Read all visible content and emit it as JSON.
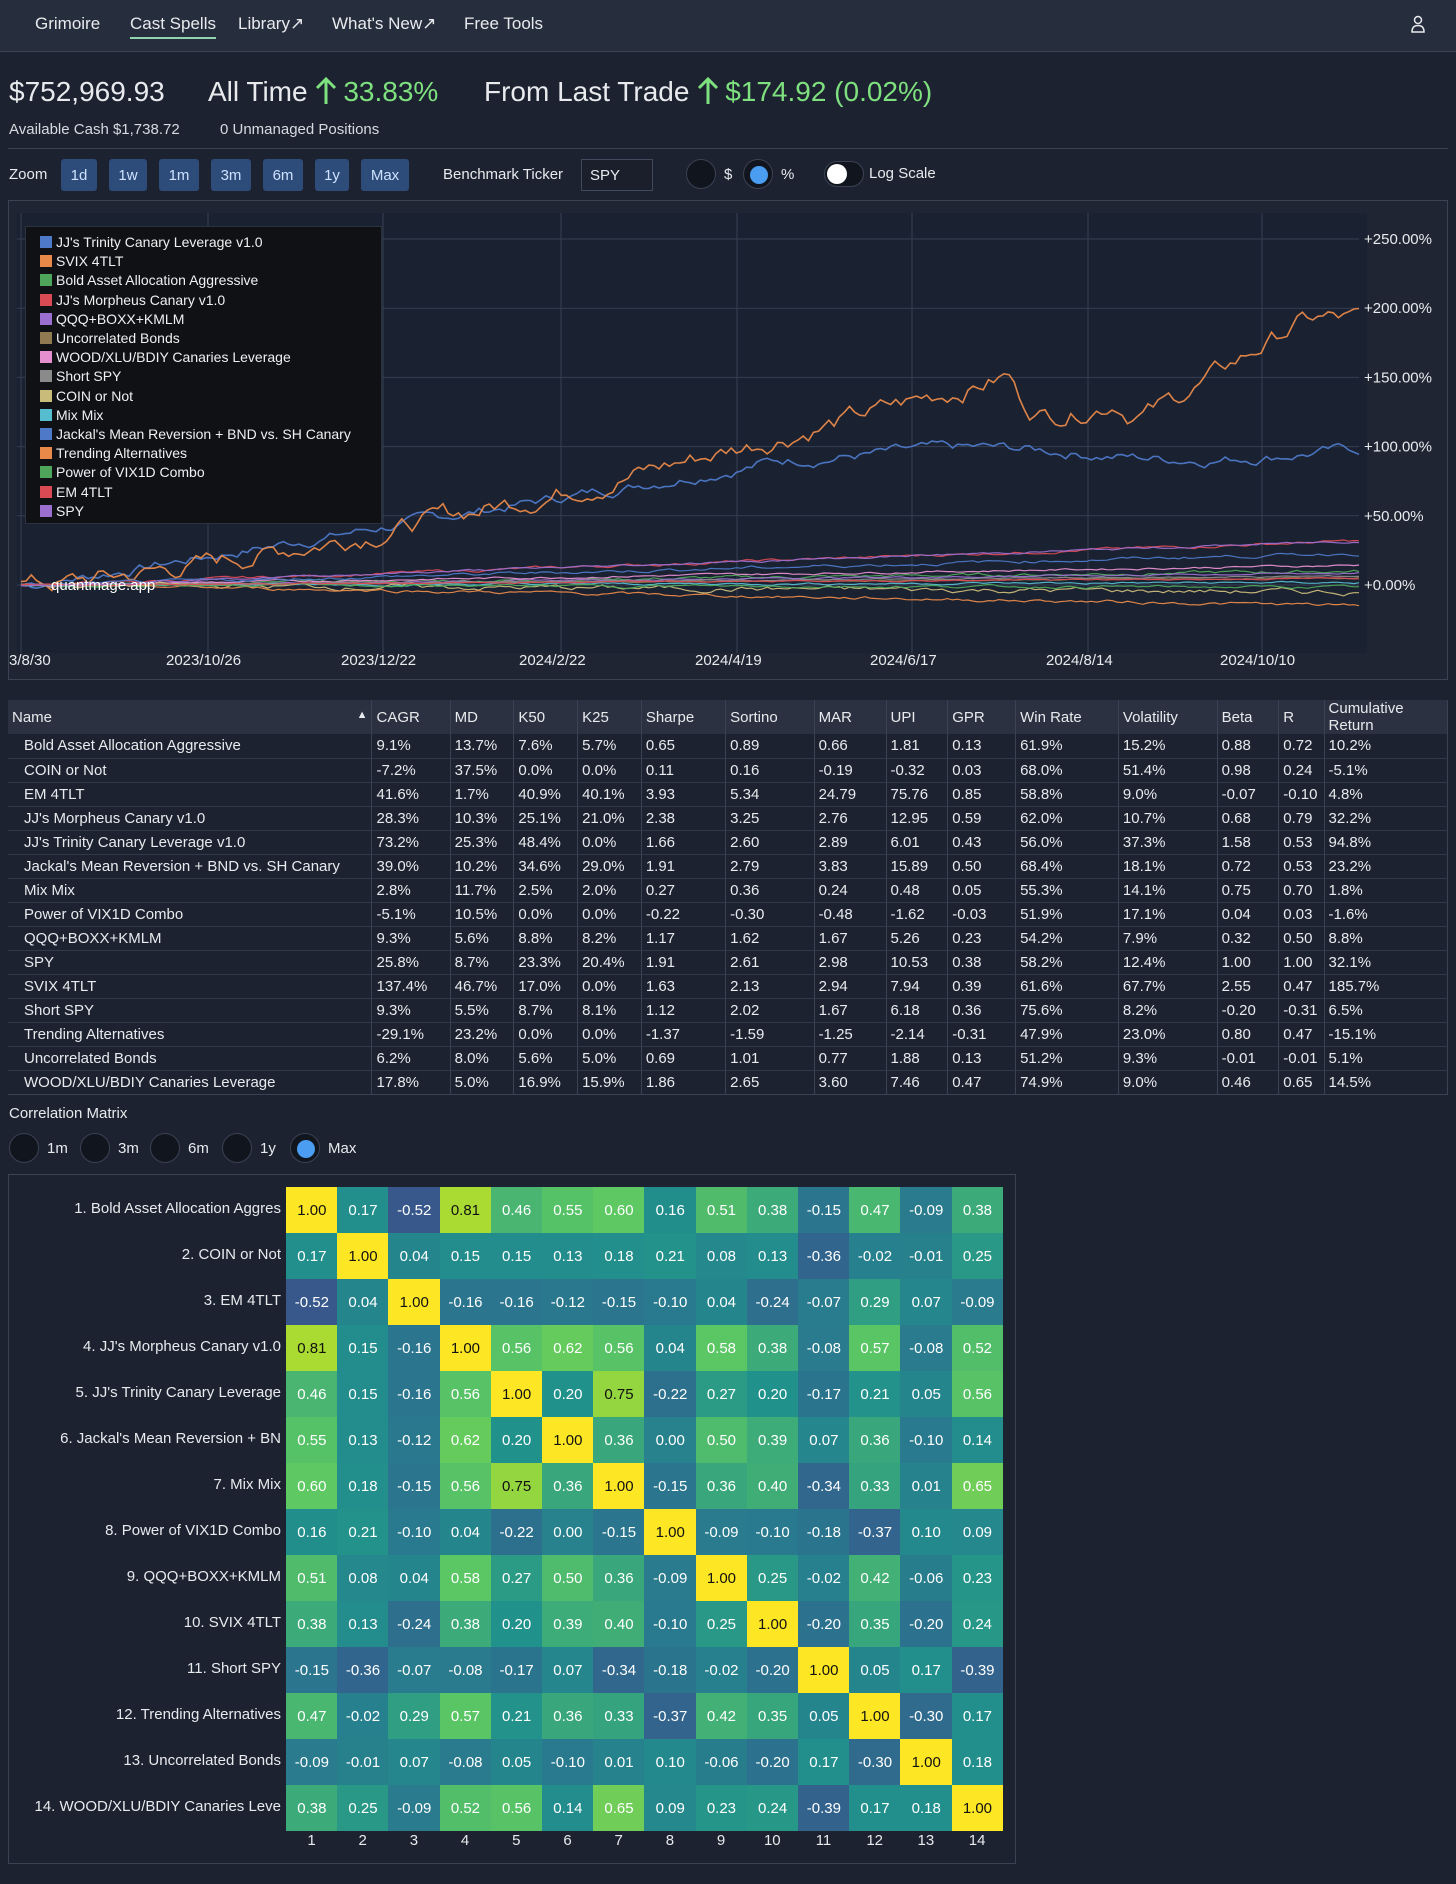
{
  "nav": {
    "items": [
      "Grimoire",
      "Cast Spells",
      "Library↗",
      "What's New↗",
      "Free Tools"
    ],
    "active": "Cast Spells"
  },
  "summary": {
    "total_value": "$752,969.93",
    "all_time_label": "All Time",
    "all_time_value": "33.83%",
    "last_trade_label": "From Last Trade",
    "last_trade_value": "$174.92 (0.02%)",
    "available_cash": "Available Cash $1,738.72",
    "unmanaged": "0 Unmanaged Positions"
  },
  "controls": {
    "zoom_label": "Zoom",
    "zoom_options": [
      "1d",
      "1w",
      "1m",
      "3m",
      "6m",
      "1y",
      "Max"
    ],
    "benchmark_label": "Benchmark Ticker",
    "benchmark_value": "SPY",
    "dollar_label": "$",
    "percent_label": "%",
    "selected_mode": "%",
    "log_scale_label": "Log Scale",
    "log_scale_on": false
  },
  "chart": {
    "watermark": "quantmage.app",
    "y_ticks": [
      "+250.00%",
      "+200.00%",
      "+150.00%",
      "+100.00%",
      "+50.00%",
      "+0.00%"
    ],
    "x_ticks": [
      "3/8/30",
      "2023/10/26",
      "2023/12/22",
      "2024/2/22",
      "2024/4/19",
      "2024/6/17",
      "2024/8/14",
      "2024/10/10"
    ],
    "legend": [
      {
        "name": "JJ's Trinity Canary Leverage v1.0",
        "color": "#4e79c8"
      },
      {
        "name": "SVIX 4TLT",
        "color": "#e8894a"
      },
      {
        "name": "Bold Asset Allocation Aggressive",
        "color": "#4fa65a"
      },
      {
        "name": "JJ's Morpheus Canary v1.0",
        "color": "#d94a55"
      },
      {
        "name": "QQQ+BOXX+KMLM",
        "color": "#9a6fcf"
      },
      {
        "name": "Uncorrelated Bonds",
        "color": "#8f7a52"
      },
      {
        "name": "WOOD/XLU/BDIY Canaries Leverage",
        "color": "#e58fcf"
      },
      {
        "name": "Short SPY",
        "color": "#8a8a8a"
      },
      {
        "name": "COIN or Not",
        "color": "#c9bb7a"
      },
      {
        "name": "Mix Mix",
        "color": "#56bccf"
      },
      {
        "name": "Jackal's Mean Reversion + BND vs. SH Canary",
        "color": "#4e79c8"
      },
      {
        "name": "Trending Alternatives",
        "color": "#e8894a"
      },
      {
        "name": "Power of VIX1D Combo",
        "color": "#4fa65a"
      },
      {
        "name": "EM 4TLT",
        "color": "#d94a55"
      },
      {
        "name": "SPY",
        "color": "#9a6fcf"
      }
    ]
  },
  "table": {
    "headers": [
      "Name",
      "CAGR",
      "MD",
      "K50",
      "K25",
      "Sharpe",
      "Sortino",
      "MAR",
      "UPI",
      "GPR",
      "Win Rate",
      "Volatility",
      "Beta",
      "R",
      "Cumulative Return"
    ],
    "sort_indicator": "▲",
    "rows": [
      [
        "Bold Asset Allocation Aggressive",
        "9.1%",
        "13.7%",
        "7.6%",
        "5.7%",
        "0.65",
        "0.89",
        "0.66",
        "1.81",
        "0.13",
        "61.9%",
        "15.2%",
        "0.88",
        "0.72",
        "10.2%"
      ],
      [
        "COIN or Not",
        "-7.2%",
        "37.5%",
        "0.0%",
        "0.0%",
        "0.11",
        "0.16",
        "-0.19",
        "-0.32",
        "0.03",
        "68.0%",
        "51.4%",
        "0.98",
        "0.24",
        "-5.1%"
      ],
      [
        "EM 4TLT",
        "41.6%",
        "1.7%",
        "40.9%",
        "40.1%",
        "3.93",
        "5.34",
        "24.79",
        "75.76",
        "0.85",
        "58.8%",
        "9.0%",
        "-0.07",
        "-0.10",
        "4.8%"
      ],
      [
        "JJ's Morpheus Canary v1.0",
        "28.3%",
        "10.3%",
        "25.1%",
        "21.0%",
        "2.38",
        "3.25",
        "2.76",
        "12.95",
        "0.59",
        "62.0%",
        "10.7%",
        "0.68",
        "0.79",
        "32.2%"
      ],
      [
        "JJ's Trinity Canary Leverage v1.0",
        "73.2%",
        "25.3%",
        "48.4%",
        "0.0%",
        "1.66",
        "2.60",
        "2.89",
        "6.01",
        "0.43",
        "56.0%",
        "37.3%",
        "1.58",
        "0.53",
        "94.8%"
      ],
      [
        "Jackal's Mean Reversion + BND vs. SH Canary",
        "39.0%",
        "10.2%",
        "34.6%",
        "29.0%",
        "1.91",
        "2.79",
        "3.83",
        "15.89",
        "0.50",
        "68.4%",
        "18.1%",
        "0.72",
        "0.53",
        "23.2%"
      ],
      [
        "Mix Mix",
        "2.8%",
        "11.7%",
        "2.5%",
        "2.0%",
        "0.27",
        "0.36",
        "0.24",
        "0.48",
        "0.05",
        "55.3%",
        "14.1%",
        "0.75",
        "0.70",
        "1.8%"
      ],
      [
        "Power of VIX1D Combo",
        "-5.1%",
        "10.5%",
        "0.0%",
        "0.0%",
        "-0.22",
        "-0.30",
        "-0.48",
        "-1.62",
        "-0.03",
        "51.9%",
        "17.1%",
        "0.04",
        "0.03",
        "-1.6%"
      ],
      [
        "QQQ+BOXX+KMLM",
        "9.3%",
        "5.6%",
        "8.8%",
        "8.2%",
        "1.17",
        "1.62",
        "1.67",
        "5.26",
        "0.23",
        "54.2%",
        "7.9%",
        "0.32",
        "0.50",
        "8.8%"
      ],
      [
        "SPY",
        "25.8%",
        "8.7%",
        "23.3%",
        "20.4%",
        "1.91",
        "2.61",
        "2.98",
        "10.53",
        "0.38",
        "58.2%",
        "12.4%",
        "1.00",
        "1.00",
        "32.1%"
      ],
      [
        "SVIX 4TLT",
        "137.4%",
        "46.7%",
        "17.0%",
        "0.0%",
        "1.63",
        "2.13",
        "2.94",
        "7.94",
        "0.39",
        "61.6%",
        "67.7%",
        "2.55",
        "0.47",
        "185.7%"
      ],
      [
        "Short SPY",
        "9.3%",
        "5.5%",
        "8.7%",
        "8.1%",
        "1.12",
        "2.02",
        "1.67",
        "6.18",
        "0.36",
        "75.6%",
        "8.2%",
        "-0.20",
        "-0.31",
        "6.5%"
      ],
      [
        "Trending Alternatives",
        "-29.1%",
        "23.2%",
        "0.0%",
        "0.0%",
        "-1.37",
        "-1.59",
        "-1.25",
        "-2.14",
        "-0.31",
        "47.9%",
        "23.0%",
        "0.80",
        "0.47",
        "-15.1%"
      ],
      [
        "Uncorrelated Bonds",
        "6.2%",
        "8.0%",
        "5.6%",
        "5.0%",
        "0.69",
        "1.01",
        "0.77",
        "1.88",
        "0.13",
        "51.2%",
        "9.3%",
        "-0.01",
        "-0.01",
        "5.1%"
      ],
      [
        "WOOD/XLU/BDIY Canaries Leverage",
        "17.8%",
        "5.0%",
        "16.9%",
        "15.9%",
        "1.86",
        "2.65",
        "3.60",
        "7.46",
        "0.47",
        "74.9%",
        "9.0%",
        "0.46",
        "0.65",
        "14.5%"
      ]
    ]
  },
  "correlation": {
    "title": "Correlation Matrix",
    "period_options": [
      "1m",
      "3m",
      "6m",
      "1y",
      "Max"
    ],
    "selected_period": "Max",
    "row_labels": [
      "1. Bold Asset Allocation Aggres",
      "2. COIN or Not",
      "3. EM 4TLT",
      "4. JJ's Morpheus Canary v1.0",
      "5. JJ's Trinity Canary Leverage",
      "6. Jackal's Mean Reversion + BN",
      "7. Mix Mix",
      "8. Power of VIX1D Combo",
      "9. QQQ+BOXX+KMLM",
      "10. SVIX 4TLT",
      "11. Short SPY",
      "12. Trending Alternatives",
      "13. Uncorrelated Bonds",
      "14. WOOD/XLU/BDIY Canaries Leve"
    ],
    "col_labels": [
      "1",
      "2",
      "3",
      "4",
      "5",
      "6",
      "7",
      "8",
      "9",
      "10",
      "11",
      "12",
      "13",
      "14"
    ],
    "matrix": [
      [
        1.0,
        0.17,
        -0.52,
        0.81,
        0.46,
        0.55,
        0.6,
        0.16,
        0.51,
        0.38,
        -0.15,
        0.47,
        -0.09,
        0.38
      ],
      [
        0.17,
        1.0,
        0.04,
        0.15,
        0.15,
        0.13,
        0.18,
        0.21,
        0.08,
        0.13,
        -0.36,
        -0.02,
        -0.01,
        0.25
      ],
      [
        -0.52,
        0.04,
        1.0,
        -0.16,
        -0.16,
        -0.12,
        -0.15,
        -0.1,
        0.04,
        -0.24,
        -0.07,
        0.29,
        0.07,
        -0.09
      ],
      [
        0.81,
        0.15,
        -0.16,
        1.0,
        0.56,
        0.62,
        0.56,
        0.04,
        0.58,
        0.38,
        -0.08,
        0.57,
        -0.08,
        0.52
      ],
      [
        0.46,
        0.15,
        -0.16,
        0.56,
        1.0,
        0.2,
        0.75,
        -0.22,
        0.27,
        0.2,
        -0.17,
        0.21,
        0.05,
        0.56
      ],
      [
        0.55,
        0.13,
        -0.12,
        0.62,
        0.2,
        1.0,
        0.36,
        0.0,
        0.5,
        0.39,
        0.07,
        0.36,
        -0.1,
        0.14
      ],
      [
        0.6,
        0.18,
        -0.15,
        0.56,
        0.75,
        0.36,
        1.0,
        -0.15,
        0.36,
        0.4,
        -0.34,
        0.33,
        0.01,
        0.65
      ],
      [
        0.16,
        0.21,
        -0.1,
        0.04,
        -0.22,
        0.0,
        -0.15,
        1.0,
        -0.09,
        -0.1,
        -0.18,
        -0.37,
        0.1,
        0.09
      ],
      [
        0.51,
        0.08,
        0.04,
        0.58,
        0.27,
        0.5,
        0.36,
        -0.09,
        1.0,
        0.25,
        -0.02,
        0.42,
        -0.06,
        0.23
      ],
      [
        0.38,
        0.13,
        -0.24,
        0.38,
        0.2,
        0.39,
        0.4,
        -0.1,
        0.25,
        1.0,
        -0.2,
        0.35,
        -0.2,
        0.24
      ],
      [
        -0.15,
        -0.36,
        -0.07,
        -0.08,
        -0.17,
        0.07,
        -0.34,
        -0.18,
        -0.02,
        -0.2,
        1.0,
        0.05,
        0.17,
        -0.39
      ],
      [
        0.47,
        -0.02,
        0.29,
        0.57,
        0.21,
        0.36,
        0.33,
        -0.37,
        0.42,
        0.35,
        0.05,
        1.0,
        -0.3,
        0.17
      ],
      [
        -0.09,
        -0.01,
        0.07,
        -0.08,
        0.05,
        -0.1,
        0.01,
        0.1,
        -0.06,
        -0.2,
        0.17,
        -0.3,
        1.0,
        0.18
      ],
      [
        0.38,
        0.25,
        -0.09,
        0.52,
        0.56,
        0.14,
        0.65,
        0.09,
        0.23,
        0.24,
        -0.39,
        0.17,
        0.18,
        1.0
      ]
    ]
  }
}
